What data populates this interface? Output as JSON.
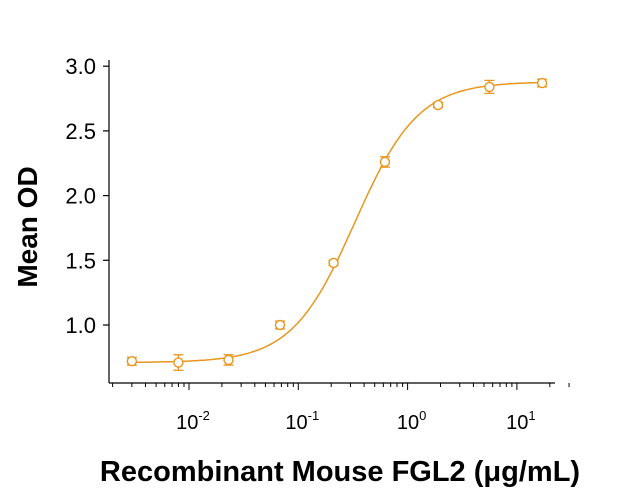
{
  "chart_data": {
    "type": "scatter",
    "xscale": "log",
    "xlim": [
      0.002,
      30
    ],
    "ylim": [
      0.5,
      3.0
    ],
    "xlabel": "Recombinant Mouse FGL2 (μg/mL)",
    "ylabel": "Mean OD",
    "grid": false,
    "color": "#E8961E",
    "yticks": [
      {
        "value": 1.0,
        "label": "1.0"
      },
      {
        "value": 1.5,
        "label": "1.5"
      },
      {
        "value": 2.0,
        "label": "2.0"
      },
      {
        "value": 2.5,
        "label": "2.5"
      },
      {
        "value": 3.0,
        "label": "3.0"
      }
    ],
    "xticks": [
      {
        "value": 0.01,
        "base": "10",
        "exp": "-2"
      },
      {
        "value": 0.1,
        "base": "10",
        "exp": "-1"
      },
      {
        "value": 1,
        "base": "10",
        "exp": "0"
      },
      {
        "value": 10,
        "base": "10",
        "exp": "1"
      }
    ],
    "points": [
      {
        "x": 0.003,
        "y": 0.72,
        "err": 0.03
      },
      {
        "x": 0.008,
        "y": 0.71,
        "err": 0.06
      },
      {
        "x": 0.023,
        "y": 0.73,
        "err": 0.04
      },
      {
        "x": 0.068,
        "y": 1.0,
        "err": 0.03
      },
      {
        "x": 0.21,
        "y": 1.48,
        "err": 0.02
      },
      {
        "x": 0.62,
        "y": 2.26,
        "err": 0.04
      },
      {
        "x": 1.9,
        "y": 2.7,
        "err": 0.02
      },
      {
        "x": 5.6,
        "y": 2.84,
        "err": 0.05
      },
      {
        "x": 17,
        "y": 2.87,
        "err": 0.03
      }
    ],
    "fit": {
      "model": "4PL",
      "bottom": 0.71,
      "top": 2.88,
      "ec50": 0.33,
      "hill": 1.5
    }
  }
}
